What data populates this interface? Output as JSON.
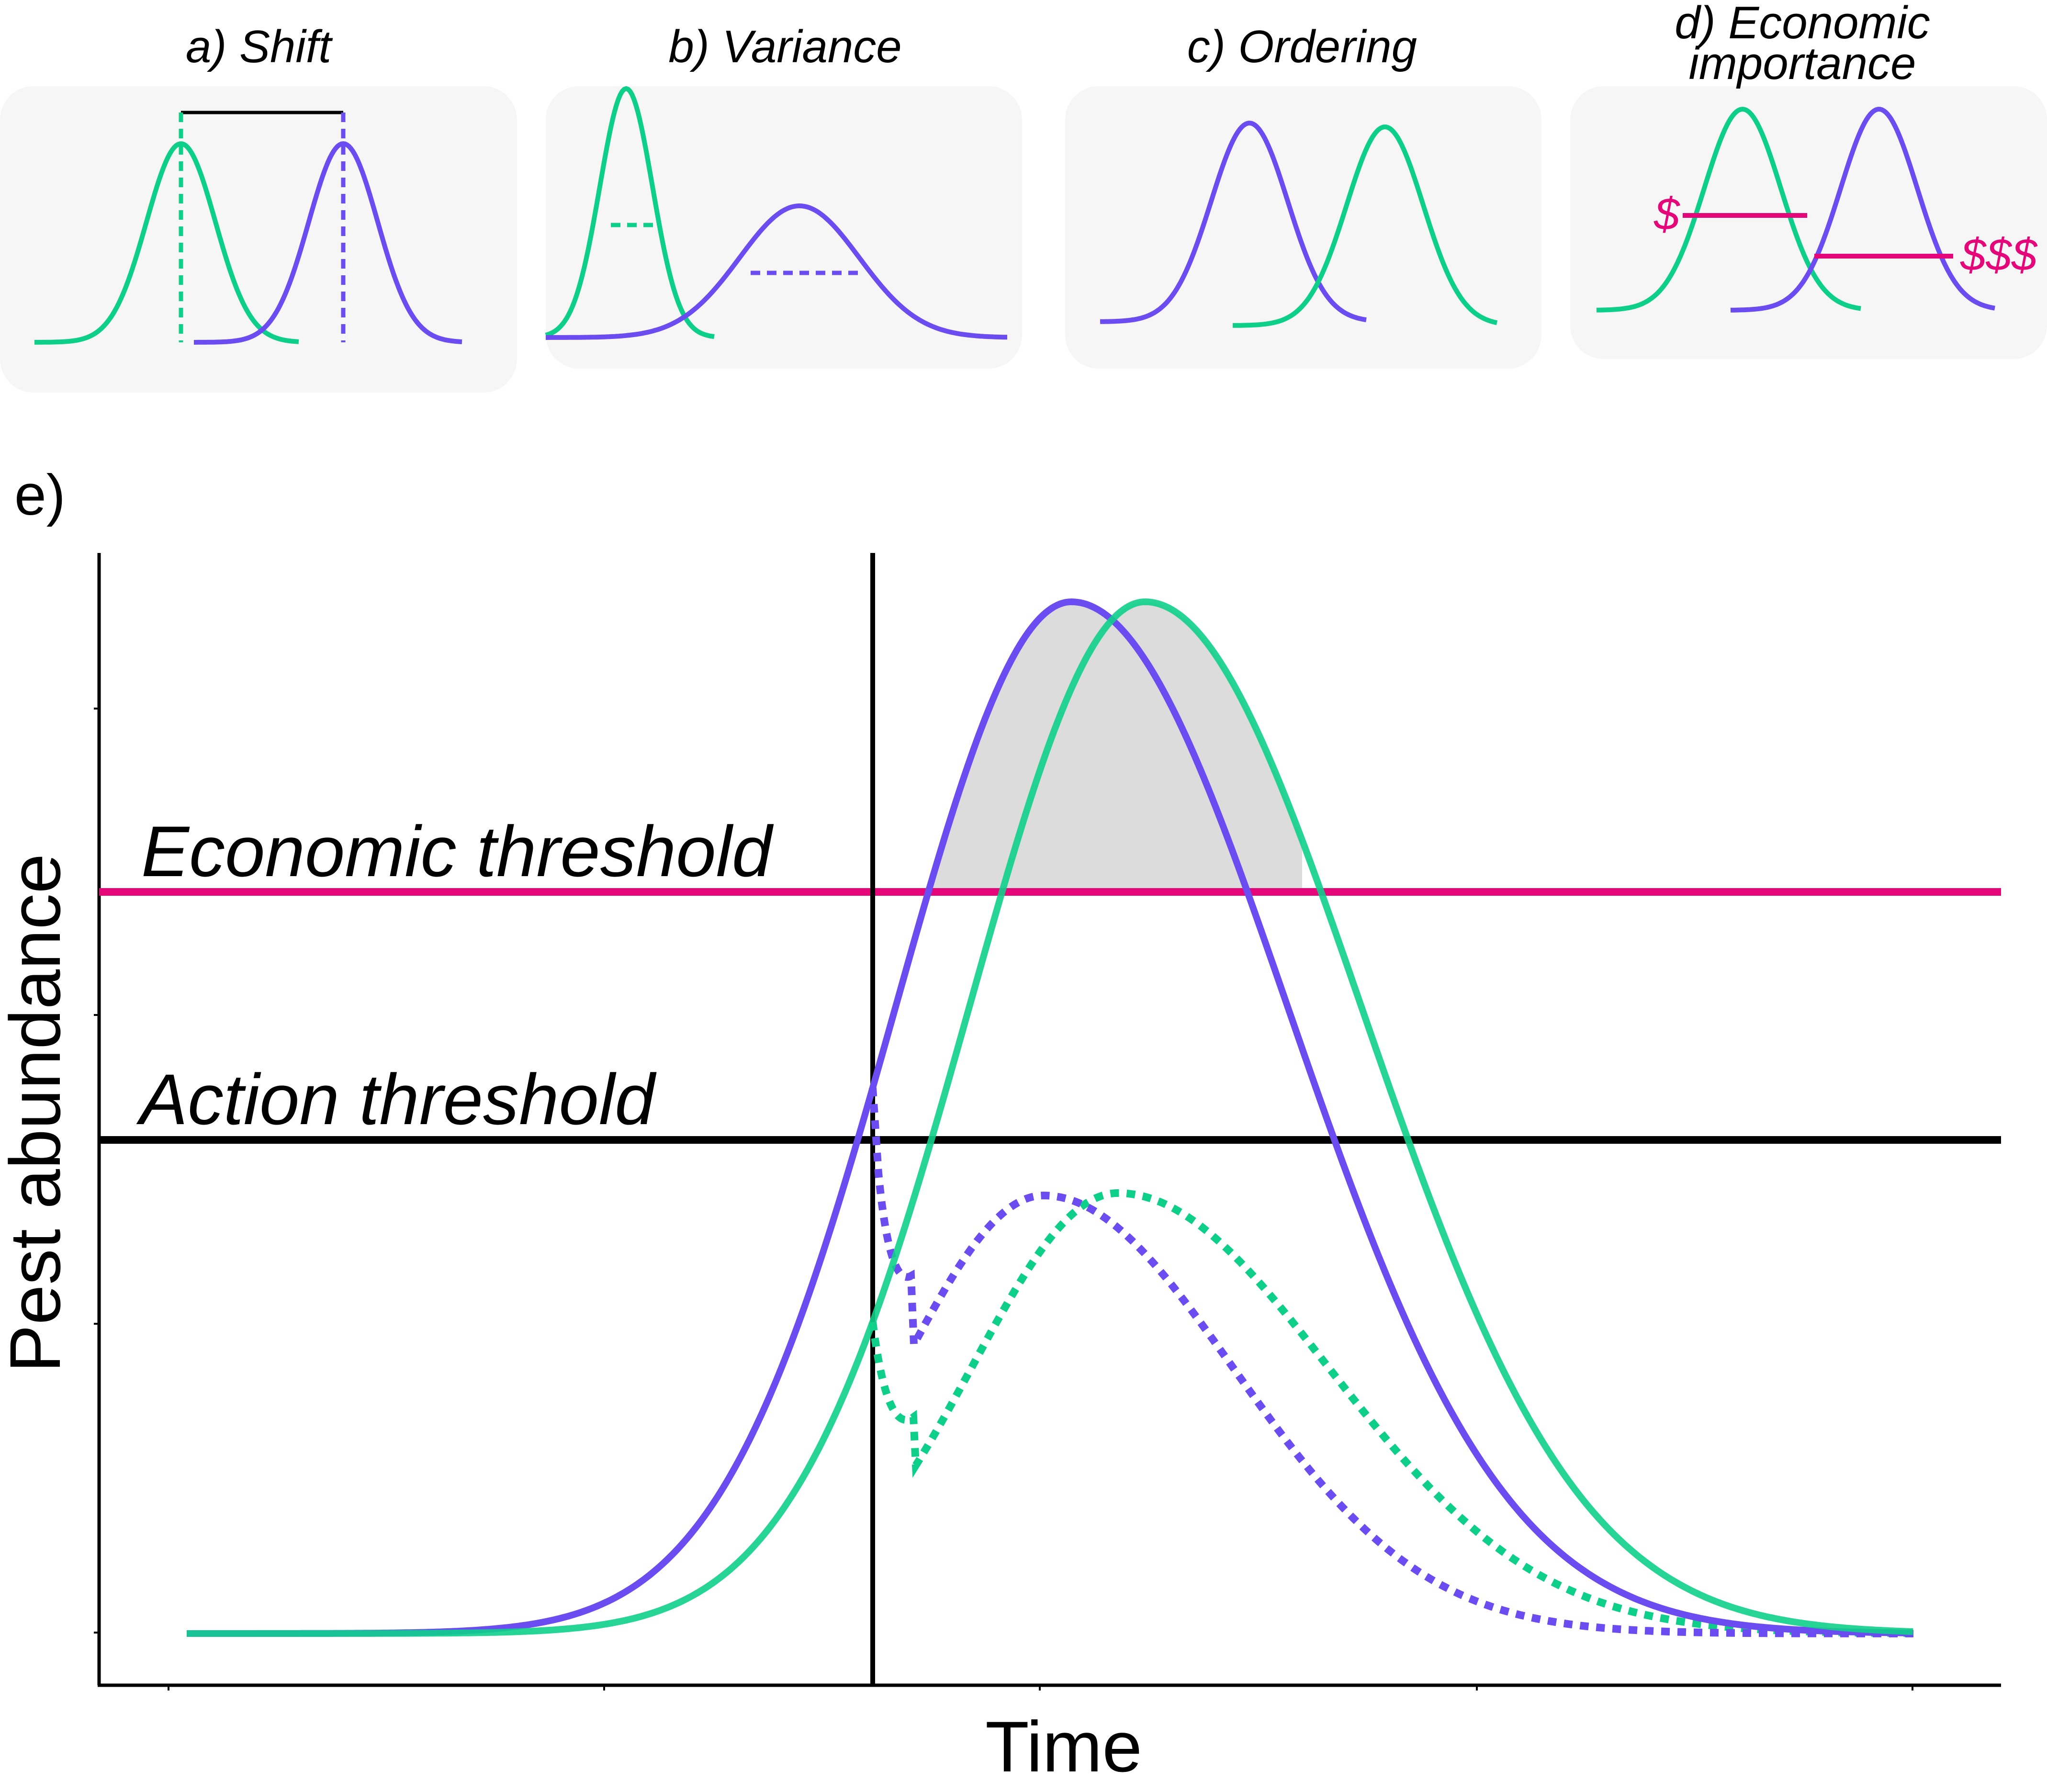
{
  "colors": {
    "green": "#0ecf8a",
    "purple": "#6a4cf0",
    "magenta": "#e5067a",
    "black": "#000000",
    "panel_bg": "#f6f6f6",
    "shade": "#d4d4d4"
  },
  "panels": {
    "a": {
      "title": "a) Shift"
    },
    "b": {
      "title": "b) Variance"
    },
    "c": {
      "title": "c) Ordering"
    },
    "d": {
      "title_line1": "d) Economic",
      "title_line2": "importance",
      "low_cost": "$",
      "high_cost": "$$$"
    }
  },
  "main": {
    "panel_letter": "e)",
    "economic_threshold_label": "Economic threshold",
    "action_threshold_label": "Action threshold",
    "x_axis_label": "Time",
    "y_axis_label": "Pest abundance"
  }
}
